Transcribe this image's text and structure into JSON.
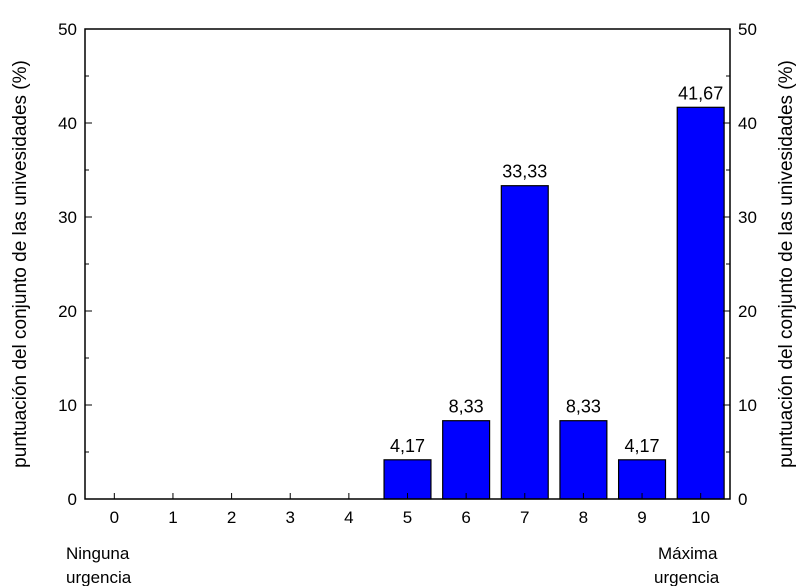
{
  "chart_data": {
    "type": "bar",
    "categories": [
      "0",
      "1",
      "2",
      "3",
      "4",
      "5",
      "6",
      "7",
      "8",
      "9",
      "10"
    ],
    "values": [
      0,
      0,
      0,
      0,
      0,
      4.17,
      8.33,
      33.33,
      8.33,
      4.17,
      41.67
    ],
    "data_labels": [
      "",
      "",
      "",
      "",
      "",
      "4,17",
      "8,33",
      "33,33",
      "8,33",
      "4,17",
      "41,67"
    ],
    "ylabel": "puntuación del conjunto de las univesidades (%)",
    "ylabel_right": "puntuación del conjunto de las univesidades (%)",
    "ylim": [
      0,
      50
    ],
    "yticks": [
      0,
      10,
      20,
      30,
      40,
      50
    ],
    "xlim": [
      -0.5,
      10.5
    ],
    "bar_color": "#0000ff",
    "grid": false,
    "x_annotations": {
      "left_line1": "Ninguna",
      "left_line2": "urgencia",
      "right_line1": "Máxima",
      "right_line2": "urgencia"
    }
  }
}
